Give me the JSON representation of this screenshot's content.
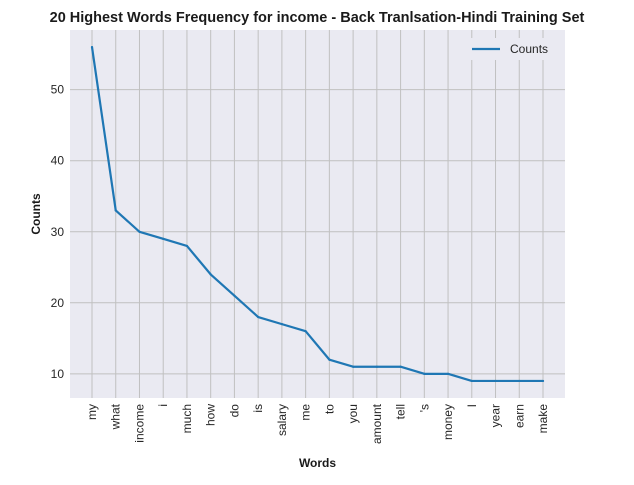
{
  "chart_data": {
    "type": "line",
    "title": "20 Highest Words Frequency for income - Back Tranlsation-Hindi Training Set",
    "xlabel": "Words",
    "ylabel": "Counts",
    "categories": [
      "my",
      "what",
      "income",
      "i",
      "much",
      "how",
      "do",
      "is",
      "salary",
      "me",
      "to",
      "you",
      "amount",
      "tell",
      "'s",
      "money",
      "I",
      "year",
      "earn",
      "make"
    ],
    "series": [
      {
        "name": "Counts",
        "values": [
          56,
          33,
          30,
          29,
          28,
          24,
          21,
          18,
          17,
          16,
          12,
          11,
          11,
          11,
          10,
          10,
          9,
          9,
          9,
          9
        ]
      }
    ],
    "yticks": [
      10,
      20,
      30,
      40,
      50
    ],
    "ylim": [
      6.6,
      58.4
    ],
    "grid": true,
    "legend_position": "top-right",
    "colors": {
      "line": "#1f77b4",
      "plot_background": "#eaeaf2",
      "grid": "#c0c0c0"
    }
  }
}
